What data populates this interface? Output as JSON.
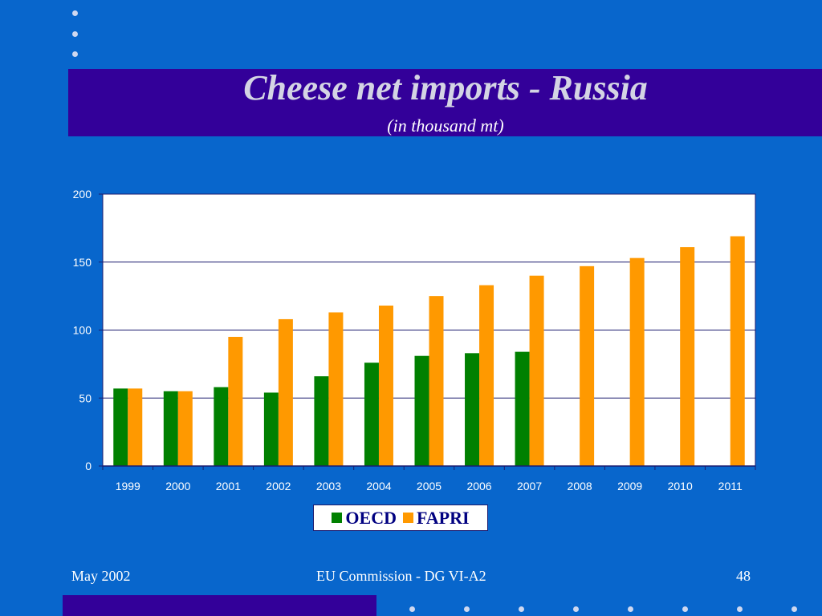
{
  "slide": {
    "title": "Cheese net imports - Russia",
    "subtitle": "(in thousand mt)",
    "footer_left": "May 2002",
    "footer_center": "EU Commission - DG VI-A2",
    "footer_right": "48"
  },
  "colors": {
    "background": "#0866cc",
    "band": "#330099",
    "oecd": "#008000",
    "fapri": "#ff9900",
    "gridline": "#1b1b6e"
  },
  "chart_data": {
    "type": "bar",
    "title": "",
    "xlabel": "",
    "ylabel": "",
    "categories": [
      "1999",
      "2000",
      "2001",
      "2002",
      "2003",
      "2004",
      "2005",
      "2006",
      "2007",
      "2008",
      "2009",
      "2010",
      "2011"
    ],
    "series": [
      {
        "name": "OECD",
        "color": "#008000",
        "values": [
          57,
          55,
          58,
          54,
          66,
          76,
          81,
          83,
          84,
          null,
          null,
          null,
          null
        ]
      },
      {
        "name": "FAPRI",
        "color": "#ff9900",
        "values": [
          57,
          55,
          95,
          108,
          113,
          118,
          125,
          133,
          140,
          147,
          153,
          161,
          169
        ]
      }
    ],
    "ylim": [
      0,
      200
    ],
    "yticks": [
      "0",
      "50",
      "100",
      "150",
      "200"
    ],
    "grid": true,
    "legend_position": "bottom"
  }
}
